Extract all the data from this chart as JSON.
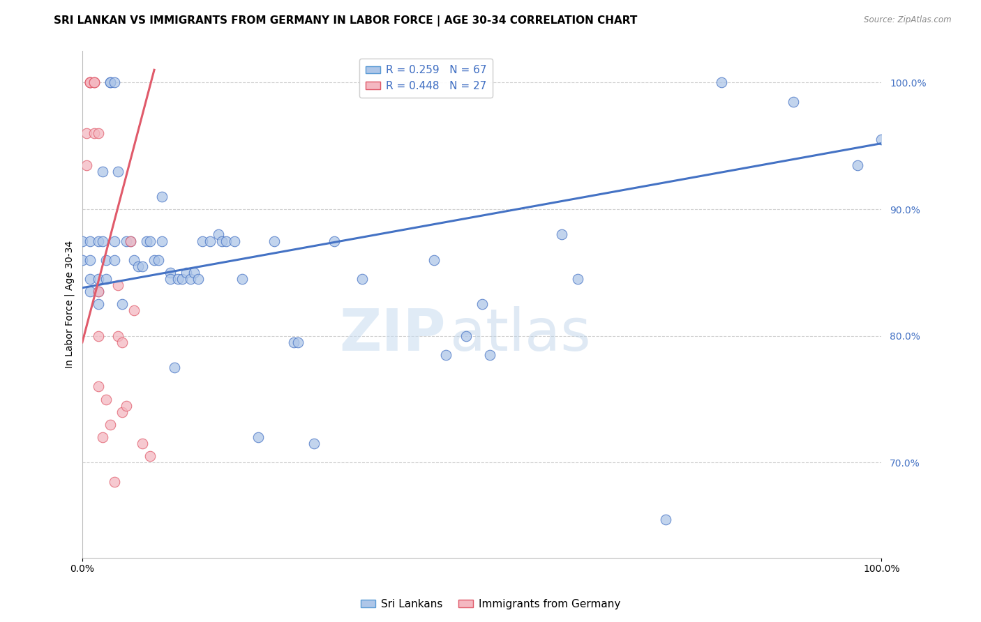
{
  "title": "SRI LANKAN VS IMMIGRANTS FROM GERMANY IN LABOR FORCE | AGE 30-34 CORRELATION CHART",
  "source": "Source: ZipAtlas.com",
  "xmin": 0.0,
  "xmax": 1.0,
  "ymin": 0.625,
  "ymax": 1.025,
  "ylabel": "In Labor Force | Age 30-34",
  "legend_entries": [
    {
      "label": "R = 0.259   N = 67",
      "color": "#aec6e8",
      "edge": "#5b9bd5"
    },
    {
      "label": "R = 0.448   N = 27",
      "color": "#f4b8c1",
      "edge": "#e05a6a"
    }
  ],
  "legend_bottom": [
    {
      "label": "Sri Lankans",
      "color": "#aec6e8",
      "edge": "#5b9bd5"
    },
    {
      "label": "Immigrants from Germany",
      "color": "#f4b8c1",
      "edge": "#e05a6a"
    }
  ],
  "blue_scatter_x": [
    0.0,
    0.0,
    0.01,
    0.01,
    0.01,
    0.01,
    0.02,
    0.02,
    0.02,
    0.02,
    0.025,
    0.025,
    0.03,
    0.03,
    0.035,
    0.035,
    0.04,
    0.04,
    0.04,
    0.045,
    0.05,
    0.055,
    0.06,
    0.065,
    0.07,
    0.075,
    0.08,
    0.085,
    0.09,
    0.095,
    0.1,
    0.1,
    0.11,
    0.11,
    0.115,
    0.12,
    0.125,
    0.13,
    0.135,
    0.14,
    0.145,
    0.15,
    0.16,
    0.17,
    0.175,
    0.18,
    0.19,
    0.2,
    0.22,
    0.24,
    0.265,
    0.27,
    0.29,
    0.315,
    0.35,
    0.44,
    0.455,
    0.48,
    0.5,
    0.51,
    0.6,
    0.62,
    0.73,
    0.8,
    0.89,
    0.97,
    1.0
  ],
  "blue_scatter_y": [
    0.875,
    0.86,
    0.875,
    0.86,
    0.845,
    0.835,
    0.875,
    0.845,
    0.835,
    0.825,
    0.93,
    0.875,
    0.86,
    0.845,
    1.0,
    1.0,
    0.875,
    0.86,
    1.0,
    0.93,
    0.825,
    0.875,
    0.875,
    0.86,
    0.855,
    0.855,
    0.875,
    0.875,
    0.86,
    0.86,
    0.91,
    0.875,
    0.85,
    0.845,
    0.775,
    0.845,
    0.845,
    0.85,
    0.845,
    0.85,
    0.845,
    0.875,
    0.875,
    0.88,
    0.875,
    0.875,
    0.875,
    0.845,
    0.72,
    0.875,
    0.795,
    0.795,
    0.715,
    0.875,
    0.845,
    0.86,
    0.785,
    0.8,
    0.825,
    0.785,
    0.88,
    0.845,
    0.655,
    1.0,
    0.985,
    0.935,
    0.955
  ],
  "pink_scatter_x": [
    0.005,
    0.005,
    0.01,
    0.01,
    0.01,
    0.01,
    0.015,
    0.015,
    0.015,
    0.015,
    0.02,
    0.02,
    0.02,
    0.02,
    0.025,
    0.03,
    0.035,
    0.04,
    0.045,
    0.045,
    0.05,
    0.05,
    0.055,
    0.06,
    0.065,
    0.075,
    0.085
  ],
  "pink_scatter_y": [
    0.96,
    0.935,
    1.0,
    1.0,
    1.0,
    1.0,
    1.0,
    1.0,
    1.0,
    0.96,
    0.96,
    0.835,
    0.8,
    0.76,
    0.72,
    0.75,
    0.73,
    0.685,
    0.84,
    0.8,
    0.795,
    0.74,
    0.745,
    0.875,
    0.82,
    0.715,
    0.705
  ],
  "blue_line_x": [
    0.0,
    1.0
  ],
  "blue_line_y": [
    0.838,
    0.952
  ],
  "pink_line_x": [
    0.0,
    0.09
  ],
  "pink_line_y": [
    0.795,
    1.01
  ],
  "grid_color": "#d0d0d0",
  "blue_color": "#aec6e8",
  "pink_color": "#f4b8c1",
  "blue_line_color": "#4472c4",
  "pink_line_color": "#e05a6a",
  "ytick_vals": [
    0.7,
    0.8,
    0.9,
    1.0
  ],
  "ytick_labels": [
    "70.0%",
    "80.0%",
    "90.0%",
    "100.0%"
  ],
  "xtick_vals": [
    0.0,
    1.0
  ],
  "xtick_labels": [
    "0.0%",
    "100.0%"
  ],
  "title_fontsize": 11,
  "axis_label_fontsize": 10,
  "tick_fontsize": 10,
  "watermark_zip": "ZIP",
  "watermark_atlas": "atlas",
  "background_color": "#ffffff"
}
